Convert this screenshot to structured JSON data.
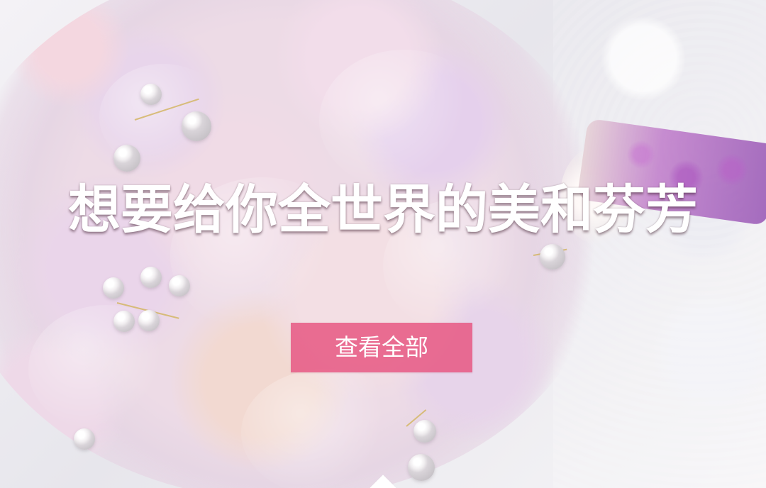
{
  "hero": {
    "headline": "想要给你全世界的美和芬芳",
    "button_label": "查看全部"
  },
  "colors": {
    "headline_text": "#ffffff",
    "button_background": "#e75984",
    "button_text": "#ffffff",
    "background": "#f4f2f6",
    "floral_pink": "#f0dbe6",
    "floral_lavender": "#e5d0ec",
    "ribbon_purple": "#9c55b5"
  },
  "icons": {
    "bottom_indicator": "caret-up-icon"
  }
}
